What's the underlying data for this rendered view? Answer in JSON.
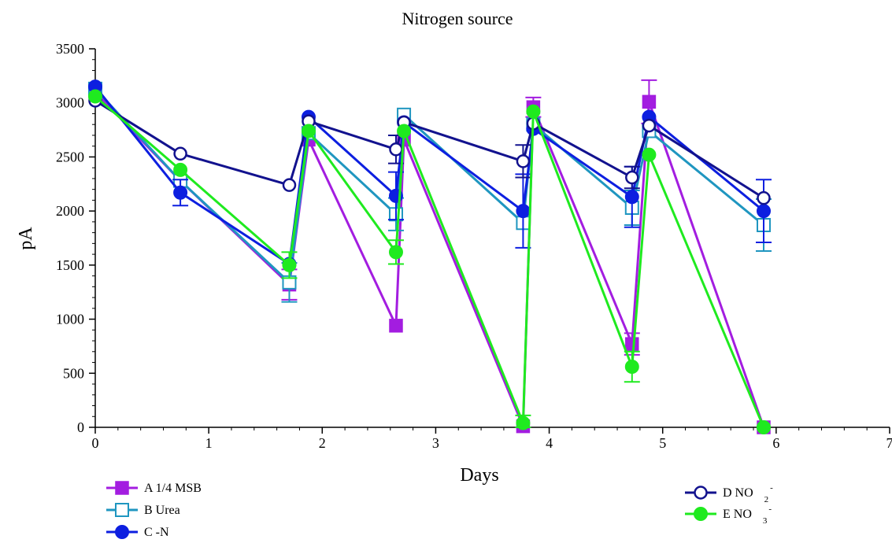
{
  "chart_data": {
    "type": "line",
    "title": "Nitrogen source",
    "xlabel": "Days",
    "ylabel": "pA",
    "xlim": [
      0,
      7
    ],
    "ylim": [
      0,
      3500
    ],
    "x_ticks": [
      "0",
      "1",
      "2",
      "3",
      "4",
      "5",
      "6",
      "7"
    ],
    "y_ticks": [
      "0",
      "500",
      "1000",
      "1500",
      "2000",
      "2500",
      "3000",
      "3500"
    ],
    "grid": false,
    "series": [
      {
        "name": "A 1/4 MSB",
        "legend_parts": [
          "A 1/4 MSB"
        ],
        "color": "#a31de0",
        "marker": "square-filled",
        "x": [
          0,
          0.75,
          1.71,
          1.88,
          2.65,
          2.72,
          3.77,
          3.86,
          4.73,
          4.88,
          5.89
        ],
        "y": [
          3100,
          2280,
          1320,
          2660,
          940,
          2660,
          10,
          2960,
          770,
          3010,
          0
        ],
        "err": [
          0,
          0,
          140,
          0,
          0,
          0,
          0,
          90,
          100,
          200,
          0
        ]
      },
      {
        "name": "B Urea",
        "legend_parts": [
          "B Urea"
        ],
        "color": "#1f96c0",
        "marker": "square-open",
        "x": [
          0,
          0.75,
          1.71,
          1.88,
          2.65,
          2.72,
          3.77,
          3.86,
          4.73,
          4.88,
          5.89
        ],
        "y": [
          3130,
          2280,
          1340,
          2720,
          1970,
          2890,
          1890,
          2800,
          2030,
          2740,
          1870
        ],
        "err": [
          0,
          0,
          180,
          0,
          150,
          0,
          0,
          0,
          160,
          0,
          240
        ]
      },
      {
        "name": "C -N",
        "legend_parts": [
          "C -N"
        ],
        "color": "#0d1fe0",
        "marker": "circle-filled",
        "x": [
          0,
          0.75,
          1.71,
          1.88,
          2.65,
          2.72,
          3.77,
          3.86,
          4.73,
          4.88,
          5.89
        ],
        "y": [
          3150,
          2170,
          1510,
          2870,
          2140,
          2820,
          2000,
          2760,
          2130,
          2870,
          2000
        ],
        "err": [
          0,
          120,
          0,
          0,
          220,
          0,
          340,
          0,
          280,
          0,
          290
        ]
      },
      {
        "name": "D NO2-",
        "legend_parts": [
          "D NO",
          "2",
          "-"
        ],
        "color": "#12128e",
        "marker": "circle-open",
        "x": [
          0,
          0.75,
          1.71,
          1.88,
          2.65,
          2.72,
          3.77,
          3.86,
          4.73,
          4.88,
          5.89
        ],
        "y": [
          3020,
          2530,
          2240,
          2830,
          2570,
          2820,
          2460,
          2810,
          2310,
          2790,
          2120
        ],
        "err": [
          0,
          0,
          0,
          0,
          130,
          0,
          150,
          0,
          100,
          0,
          0
        ]
      },
      {
        "name": "E NO3-",
        "legend_parts": [
          "E NO",
          "3",
          "-"
        ],
        "color": "#1fea1f",
        "marker": "circle-filled",
        "x": [
          0,
          0.75,
          1.71,
          1.88,
          2.65,
          2.72,
          3.77,
          3.86,
          4.73,
          4.88,
          5.89
        ],
        "y": [
          3060,
          2380,
          1500,
          2740,
          1620,
          2740,
          40,
          2920,
          560,
          2520,
          0
        ],
        "err": [
          0,
          0,
          120,
          0,
          110,
          0,
          70,
          0,
          140,
          0,
          0
        ]
      }
    ]
  }
}
